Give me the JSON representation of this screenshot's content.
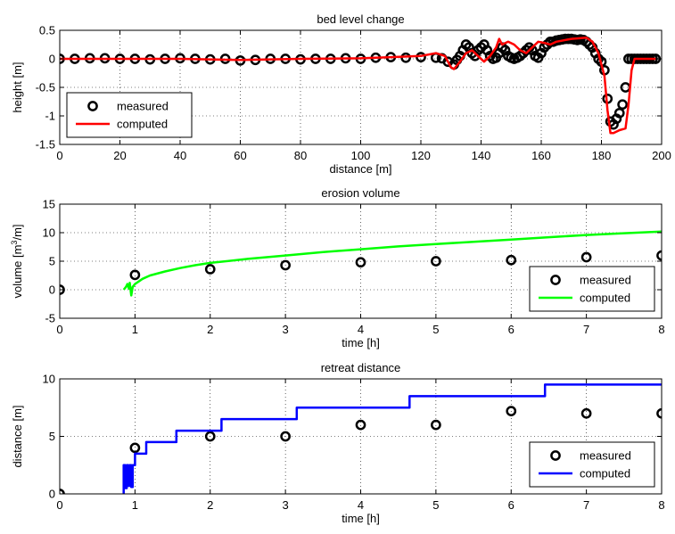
{
  "chart_data": [
    {
      "type": "line",
      "title": "bed level change",
      "xlabel": "distance [m]",
      "ylabel": "height [m]",
      "xlim": [
        0,
        200
      ],
      "ylim": [
        -1.5,
        0.5
      ],
      "xticks": [
        0,
        20,
        40,
        60,
        80,
        100,
        120,
        140,
        160,
        180,
        200
      ],
      "yticks": [
        -1.5,
        -1,
        -0.5,
        0,
        0.5
      ],
      "xtick_labels": [
        "0",
        "20",
        "40",
        "60",
        "80",
        "100",
        "120",
        "140",
        "160",
        "180",
        "200"
      ],
      "ytick_labels": [
        "-1.5",
        "-1",
        "-0.5",
        "0",
        "0.5"
      ],
      "grid": true,
      "legend": "bottom-left",
      "series": [
        {
          "name": "measured",
          "style": "markers",
          "color": "#000000",
          "x": [
            0,
            5,
            10,
            15,
            20,
            25,
            30,
            35,
            40,
            45,
            50,
            55,
            60,
            65,
            70,
            75,
            80,
            85,
            90,
            95,
            100,
            105,
            110,
            115,
            120,
            125,
            127,
            129,
            131,
            132,
            133,
            134,
            135,
            136,
            137,
            138,
            139,
            140,
            141,
            142,
            143,
            144,
            145,
            146,
            147,
            148,
            149,
            150,
            151,
            152,
            153,
            154,
            155,
            156,
            157,
            158,
            159,
            160,
            161,
            162,
            163,
            164,
            165,
            166,
            167,
            168,
            169,
            170,
            171,
            172,
            173,
            174,
            175,
            176,
            177,
            178,
            179,
            180,
            181,
            182,
            183,
            184,
            185,
            186,
            187,
            188,
            189,
            190,
            191,
            192,
            193,
            194,
            195,
            196,
            197,
            198
          ],
          "y": [
            0,
            0,
            0.01,
            0.01,
            0,
            0,
            -0.01,
            0,
            0.01,
            0,
            -0.01,
            0,
            -0.03,
            -0.02,
            0,
            0,
            -0.01,
            0,
            0,
            0.01,
            0,
            0.02,
            0.03,
            0.02,
            0.03,
            0.02,
            0.01,
            -0.05,
            -0.1,
            -0.02,
            0.05,
            0.15,
            0.25,
            0.2,
            0.1,
            0.05,
            0.15,
            0.2,
            0.25,
            0.15,
            0.05,
            0,
            0.02,
            0.1,
            0.2,
            0.15,
            0.05,
            0.02,
            0,
            0.02,
            0.05,
            0.1,
            0.15,
            0.2,
            0.15,
            0.05,
            0.02,
            0.1,
            0.2,
            0.25,
            0.3,
            0.3,
            0.32,
            0.33,
            0.34,
            0.35,
            0.35,
            0.35,
            0.34,
            0.33,
            0.34,
            0.33,
            0.3,
            0.25,
            0.2,
            0.1,
            0,
            -0.05,
            -0.2,
            -0.7,
            -1.1,
            -1.15,
            -1.05,
            -0.95,
            -0.8,
            -0.5,
            0,
            0,
            0,
            0,
            0,
            0,
            0,
            0,
            0,
            0
          ]
        },
        {
          "name": "computed",
          "style": "line",
          "color": "#ff0000",
          "x": [
            0,
            20,
            40,
            60,
            80,
            100,
            110,
            120,
            125,
            128,
            130,
            131,
            133,
            135,
            137,
            139,
            141,
            143,
            145,
            146,
            147,
            149,
            151,
            153,
            155,
            157,
            159,
            161,
            163,
            165,
            170,
            175,
            177,
            179,
            181,
            182,
            183,
            184,
            186,
            188,
            189,
            190,
            191,
            192,
            195,
            198
          ],
          "y": [
            0,
            0,
            0,
            -0.02,
            0,
            0.01,
            0.03,
            0.05,
            0.1,
            0.05,
            -0.15,
            -0.18,
            -0.05,
            0.1,
            0.15,
            0.05,
            -0.05,
            0.05,
            0.2,
            0.35,
            0.25,
            0.3,
            0.25,
            0.15,
            0.1,
            0.2,
            0.3,
            0.28,
            0.25,
            0.3,
            0.35,
            0.37,
            0.3,
            0.1,
            -0.3,
            -0.9,
            -1.3,
            -1.3,
            -1.25,
            -1.22,
            -0.8,
            -0.2,
            0,
            0,
            0,
            0
          ]
        }
      ]
    },
    {
      "type": "line",
      "title": "erosion volume",
      "xlabel": "time [h]",
      "ylabel": "volume [m³/m]",
      "ylabel_parts": [
        "volume [m",
        "3",
        "/m]"
      ],
      "xlim": [
        0,
        8
      ],
      "ylim": [
        -5,
        15
      ],
      "xticks": [
        0,
        1,
        2,
        3,
        4,
        5,
        6,
        7,
        8
      ],
      "yticks": [
        -5,
        0,
        5,
        10,
        15
      ],
      "xtick_labels": [
        "0",
        "1",
        "2",
        "3",
        "4",
        "5",
        "6",
        "7",
        "8"
      ],
      "ytick_labels": [
        "-5",
        "0",
        "5",
        "10",
        "15"
      ],
      "grid": true,
      "legend": "bottom-right",
      "series": [
        {
          "name": "measured",
          "style": "markers",
          "color": "#000000",
          "x": [
            0,
            1,
            2,
            3,
            4,
            5,
            6,
            7,
            8
          ],
          "y": [
            0,
            2.6,
            3.6,
            4.3,
            4.8,
            5.0,
            5.2,
            5.7,
            6.0
          ]
        },
        {
          "name": "computed",
          "style": "line",
          "color": "#00ff00",
          "x": [
            0.85,
            0.88,
            0.9,
            0.92,
            0.93,
            0.95,
            0.97,
            1.0,
            1.1,
            1.2,
            1.4,
            1.6,
            1.8,
            2.0,
            2.5,
            3.0,
            3.5,
            4.0,
            4.5,
            5.0,
            5.5,
            6.0,
            6.5,
            7.0,
            7.5,
            8.0
          ],
          "y": [
            0,
            0.5,
            1.0,
            0.2,
            1.2,
            -1.0,
            0.5,
            1.0,
            1.9,
            2.5,
            3.2,
            3.8,
            4.3,
            4.7,
            5.4,
            6.0,
            6.6,
            7.1,
            7.6,
            8.0,
            8.4,
            8.8,
            9.2,
            9.6,
            9.9,
            10.2
          ]
        }
      ]
    },
    {
      "type": "line",
      "title": "retreat distance",
      "xlabel": "time [h]",
      "ylabel": "distance [m]",
      "xlim": [
        0,
        8
      ],
      "ylim": [
        0,
        10
      ],
      "xticks": [
        0,
        1,
        2,
        3,
        4,
        5,
        6,
        7,
        8
      ],
      "yticks": [
        0,
        5,
        10
      ],
      "xtick_labels": [
        "0",
        "1",
        "2",
        "3",
        "4",
        "5",
        "6",
        "7",
        "8"
      ],
      "ytick_labels": [
        "0",
        "5",
        "10"
      ],
      "grid": true,
      "legend": "bottom-right",
      "series": [
        {
          "name": "measured",
          "style": "markers",
          "color": "#000000",
          "x": [
            0,
            1,
            2,
            3,
            4,
            5,
            6,
            7,
            8
          ],
          "y": [
            0,
            4,
            5,
            5,
            6,
            6,
            7.2,
            7,
            7
          ]
        },
        {
          "name": "computed",
          "style": "line",
          "color": "#0000ff",
          "x": [
            0.85,
            0.85,
            0.87,
            0.87,
            0.89,
            0.89,
            0.91,
            0.91,
            0.93,
            0.93,
            0.95,
            0.95,
            0.97,
            0.97,
            1.0,
            1.0,
            1.15,
            1.15,
            1.55,
            1.55,
            2.15,
            2.15,
            3.15,
            3.15,
            4.65,
            4.65,
            6.45,
            6.45,
            8.0
          ],
          "y": [
            0,
            2.5,
            2.5,
            0.5,
            0.5,
            2.5,
            2.5,
            0.7,
            0.7,
            2.5,
            2.5,
            0.6,
            0.6,
            2.5,
            2.5,
            3.5,
            3.5,
            4.5,
            4.5,
            5.5,
            5.5,
            6.5,
            6.5,
            7.5,
            7.5,
            8.5,
            8.5,
            9.5,
            9.5
          ]
        }
      ]
    }
  ]
}
